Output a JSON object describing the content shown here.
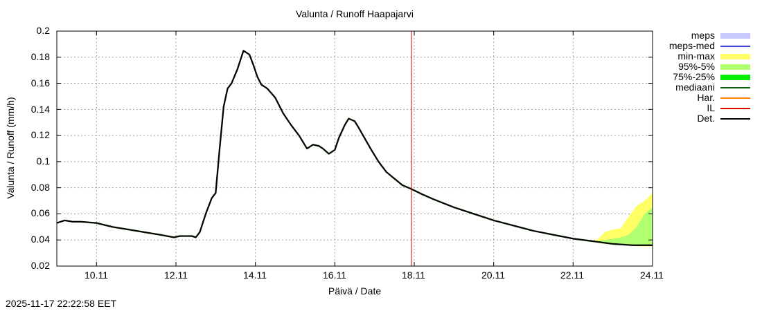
{
  "chart_data": {
    "type": "line",
    "title": "Valunta / Runoff  Haapajarvi",
    "xlabel": "Päivä / Date",
    "ylabel": "Valunta / Runoff (mm/h)",
    "timestamp": "2025-11-17 22:22:58 EET",
    "xlim": [
      9.0,
      24.0
    ],
    "ylim": [
      0.02,
      0.2
    ],
    "grid": true,
    "legend_position": "right",
    "y_ticks": [
      "0.2",
      "0.18",
      "0.16",
      "0.14",
      "0.12",
      "0.1",
      "0.08",
      "0.06",
      "0.04",
      "0.02"
    ],
    "x_ticks": [
      "10.11",
      "12.11",
      "14.11",
      "16.11",
      "18.11",
      "20.11",
      "22.11",
      "24.11"
    ],
    "legend": [
      {
        "label": "meps",
        "color": "#c8c8ff",
        "style": "band"
      },
      {
        "label": "meps-med",
        "color": "#4040d0",
        "style": "line"
      },
      {
        "label": "min-max",
        "color": "#ffff66",
        "style": "band"
      },
      {
        "label": "95%-5%",
        "color": "#b0ff70",
        "style": "band"
      },
      {
        "label": "75%-25%",
        "color": "#00ee00",
        "style": "band"
      },
      {
        "label": "mediaani",
        "color": "#006400",
        "style": "line"
      },
      {
        "label": "Har.",
        "color": "#ff8000",
        "style": "line"
      },
      {
        "label": "IL",
        "color": "#e00000",
        "style": "line"
      },
      {
        "label": "Det.",
        "color": "#000000",
        "style": "line"
      }
    ],
    "forecast_time_day": 17.93,
    "series": [
      {
        "name": "Det.",
        "x": [
          9.0,
          9.2,
          9.4,
          9.6,
          10.0,
          10.4,
          10.8,
          11.2,
          11.6,
          11.95,
          12.1,
          12.4,
          12.5,
          12.6,
          12.75,
          12.9,
          13.0,
          13.1,
          13.2,
          13.3,
          13.4,
          13.55,
          13.7,
          13.85,
          13.95,
          14.05,
          14.15,
          14.3,
          14.5,
          14.7,
          14.9,
          15.1,
          15.3,
          15.45,
          15.6,
          15.7,
          15.85,
          16.0,
          16.1,
          16.25,
          16.35,
          16.5,
          16.6,
          16.75,
          16.9,
          17.1,
          17.3,
          17.5,
          17.7,
          17.93,
          18.2,
          18.5,
          19.0,
          19.5,
          20.0,
          20.5,
          21.0,
          21.5,
          22.0,
          22.5,
          23.0,
          23.5,
          24.0
        ],
        "y": [
          0.053,
          0.055,
          0.054,
          0.054,
          0.053,
          0.05,
          0.048,
          0.046,
          0.044,
          0.042,
          0.043,
          0.043,
          0.042,
          0.046,
          0.06,
          0.072,
          0.076,
          0.11,
          0.142,
          0.156,
          0.16,
          0.171,
          0.185,
          0.182,
          0.174,
          0.165,
          0.159,
          0.156,
          0.149,
          0.137,
          0.128,
          0.12,
          0.11,
          0.113,
          0.112,
          0.11,
          0.106,
          0.109,
          0.118,
          0.128,
          0.133,
          0.131,
          0.126,
          0.118,
          0.11,
          0.1,
          0.092,
          0.087,
          0.082,
          0.079,
          0.075,
          0.071,
          0.065,
          0.06,
          0.055,
          0.051,
          0.047,
          0.044,
          0.041,
          0.039,
          0.037,
          0.036,
          0.036
        ]
      },
      {
        "name": "min-max",
        "x": [
          22.3,
          22.6,
          22.8,
          23.0,
          23.2,
          23.4,
          23.6,
          23.8,
          24.0
        ],
        "lower": [
          0.039,
          0.038,
          0.037,
          0.037,
          0.036,
          0.036,
          0.035,
          0.035,
          0.035
        ],
        "upper": [
          0.039,
          0.04,
          0.046,
          0.048,
          0.049,
          0.058,
          0.066,
          0.07,
          0.076
        ]
      },
      {
        "name": "95%-5%",
        "x": [
          22.3,
          22.6,
          22.8,
          23.0,
          23.2,
          23.4,
          23.6,
          23.8,
          24.0
        ],
        "lower": [
          0.039,
          0.038,
          0.037,
          0.037,
          0.036,
          0.036,
          0.036,
          0.036,
          0.035
        ],
        "upper": [
          0.039,
          0.039,
          0.04,
          0.041,
          0.042,
          0.044,
          0.05,
          0.06,
          0.065
        ]
      }
    ]
  }
}
